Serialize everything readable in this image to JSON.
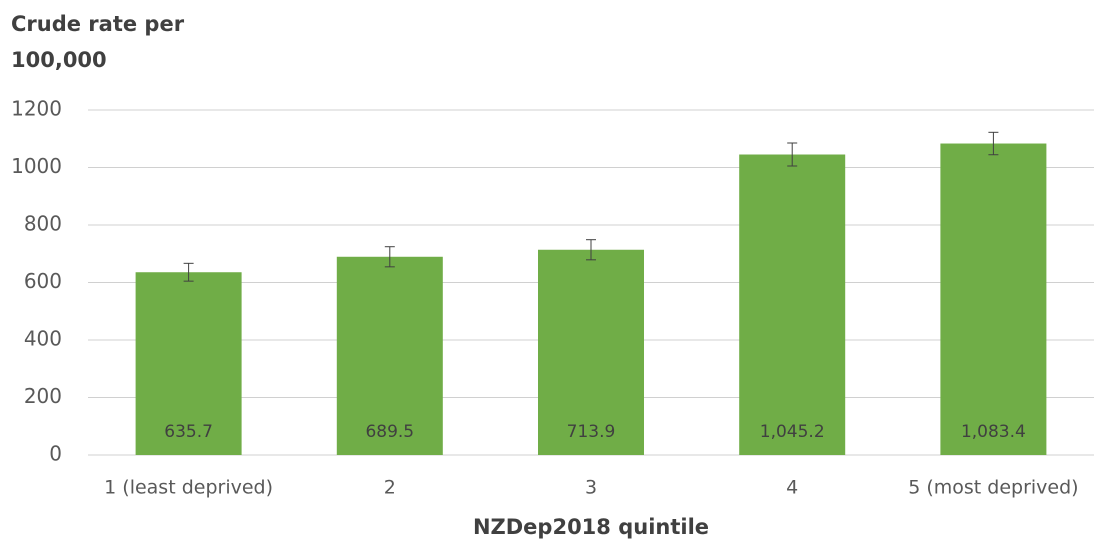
{
  "chart_data": {
    "type": "bar",
    "y_label": "Crude rate per 100,000",
    "x_label": "NZDep2018 quintile",
    "categories": [
      "1 (least deprived)",
      "2",
      "3",
      "4",
      "5 (most deprived)"
    ],
    "values": [
      635.7,
      689.5,
      713.9,
      1045.2,
      1083.4
    ],
    "value_labels": [
      "635.7",
      "689.5",
      "713.9",
      "1,045.2",
      "1,083.4"
    ],
    "errors": [
      31,
      35,
      35,
      40,
      39
    ],
    "color": "#70ad47",
    "ylim": [
      0,
      1200
    ],
    "yticks": [
      0,
      200,
      400,
      600,
      800,
      1000,
      1200
    ],
    "grid": true
  }
}
